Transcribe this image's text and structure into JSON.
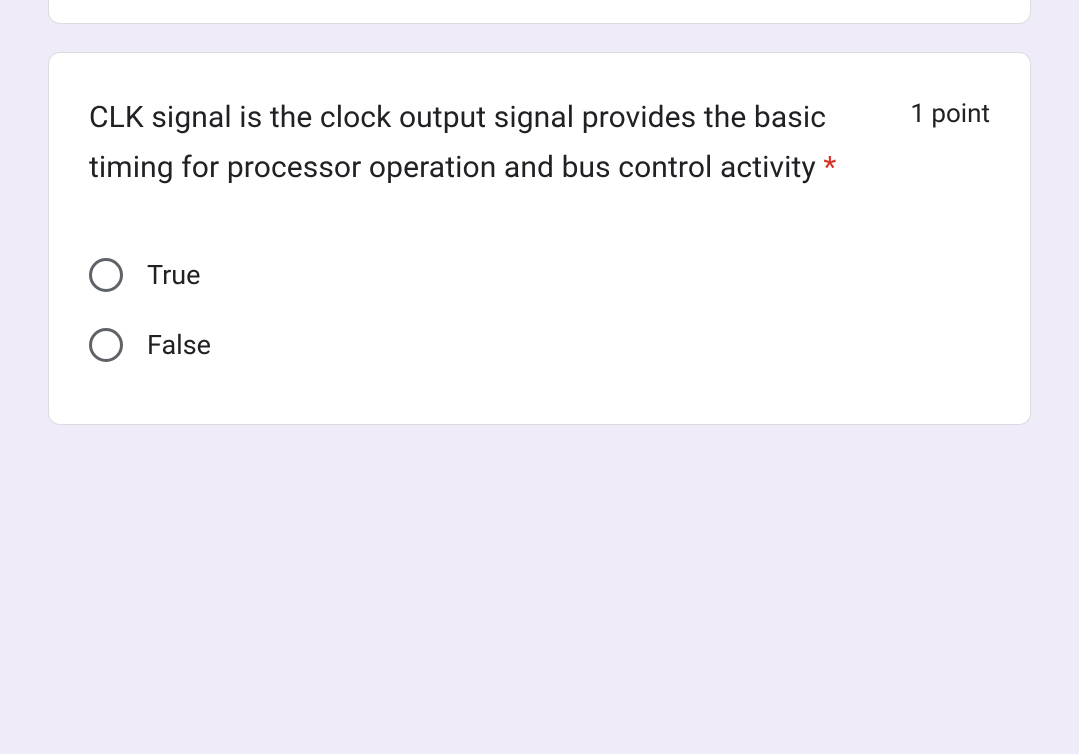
{
  "question": {
    "text": "CLK signal is the clock output signal provides the basic timing for processor operation and bus control activity ",
    "required_marker": "*",
    "points_label": "1 point",
    "options": [
      {
        "label": "True"
      },
      {
        "label": "False"
      }
    ]
  },
  "colors": {
    "page_bg": "#f0ebf8",
    "card_bg": "#ffffff",
    "card_border": "#dadce0",
    "text": "#202124",
    "required": "#d93025",
    "radio_border": "#5f6368"
  }
}
